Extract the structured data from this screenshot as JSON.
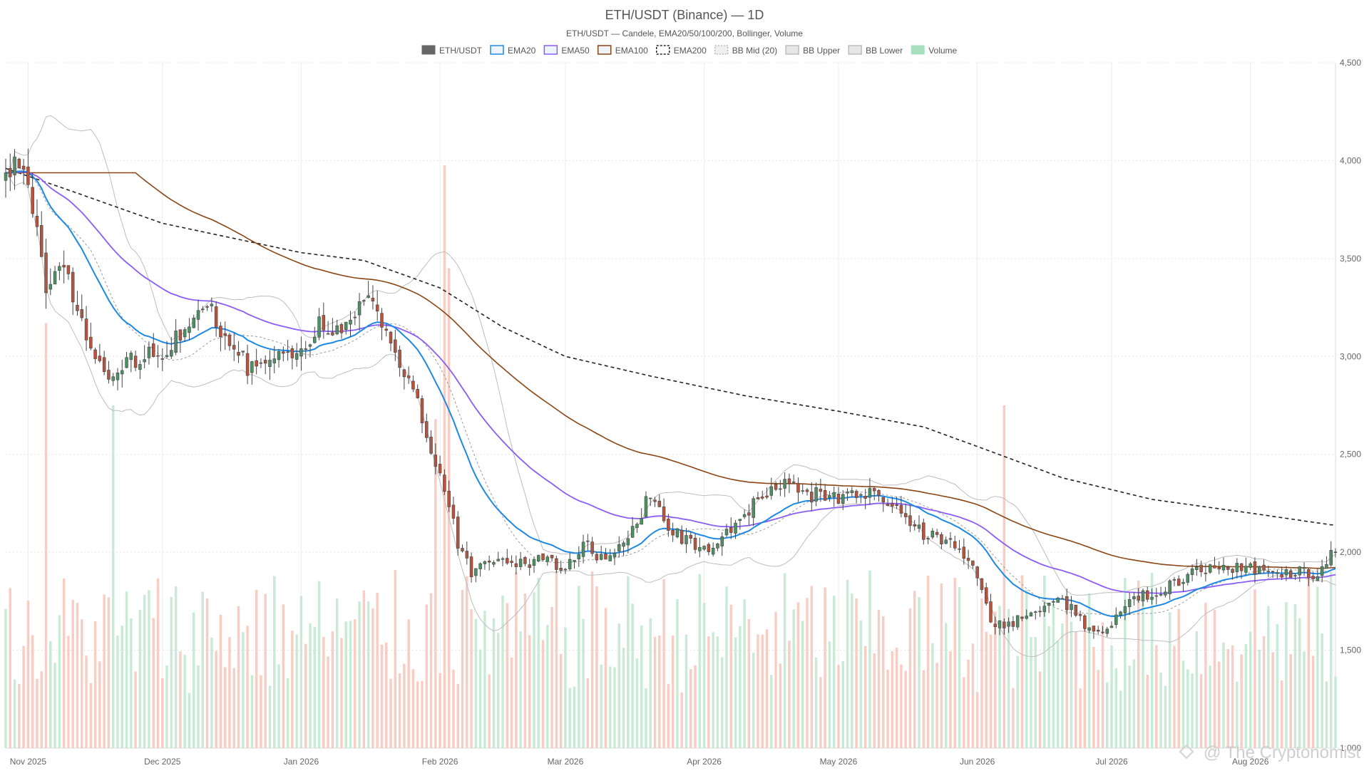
{
  "chart_data": {
    "type": "candlestick",
    "title": "ETH/USDT (Binance) — 1D",
    "subtitle": "ETH/USDT — Candele, EMA20/50/100/200, Bollinger, Volume",
    "legend": [
      {
        "label": "ETH/USDT",
        "color": "#666666",
        "style": "solid-fill"
      },
      {
        "label": "EMA20",
        "color": "#1e88e5",
        "style": "line"
      },
      {
        "label": "EMA50",
        "color": "#8b5cf6",
        "style": "line"
      },
      {
        "label": "EMA100",
        "color": "#8b4513",
        "style": "line"
      },
      {
        "label": "EMA200",
        "color": "#222222",
        "style": "dashed"
      },
      {
        "label": "BB Mid (20)",
        "color": "#999999",
        "style": "dotted"
      },
      {
        "label": "BB Upper",
        "color": "#bdbdbd",
        "style": "line"
      },
      {
        "label": "BB Lower",
        "color": "#bdbdbd",
        "style": "line"
      },
      {
        "label": "Volume",
        "color": "#a8e0bf",
        "style": "solid-fill"
      }
    ],
    "legend_position": "top-center",
    "x_axis": {
      "type": "date",
      "range": [
        "2025-10-27",
        "2026-08-20"
      ],
      "ticks": [
        {
          "date": "2025-11-01",
          "label": "Nov 2025"
        },
        {
          "date": "2025-12-01",
          "label": "Dec 2025"
        },
        {
          "date": "2026-01-01",
          "label": "Jan 2026"
        },
        {
          "date": "2026-02-01",
          "label": "Feb 2026"
        },
        {
          "date": "2026-03-01",
          "label": "Mar 2026"
        },
        {
          "date": "2026-04-01",
          "label": "Apr 2026"
        },
        {
          "date": "2026-05-01",
          "label": "May 2026"
        },
        {
          "date": "2026-06-01",
          "label": "Jun 2026"
        },
        {
          "date": "2026-07-01",
          "label": "Jul 2026"
        },
        {
          "date": "2026-08-01",
          "label": "Aug 2026"
        }
      ]
    },
    "y_axis": {
      "position": "right",
      "range": [
        1000,
        4500
      ],
      "ticks": [
        1000,
        1500,
        2000,
        2500,
        3000,
        3500,
        4000,
        4500
      ],
      "tick_labels": [
        "1,000",
        "1,500",
        "2,000",
        "2,500",
        "3,000",
        "3,500",
        "4,000",
        "4,500"
      ]
    },
    "grid": true,
    "colors": {
      "up": "#4e8f63",
      "down": "#b5543f",
      "up_volume": "#bfe6cf",
      "down_volume": "#f7c4ba"
    },
    "anchors": {
      "close": [
        [
          "2025-10-27",
          3950
        ],
        [
          "2025-10-31",
          3980
        ],
        [
          "2025-11-03",
          3650
        ],
        [
          "2025-11-05",
          3300
        ],
        [
          "2025-11-09",
          3500
        ],
        [
          "2025-11-12",
          3250
        ],
        [
          "2025-11-15",
          3050
        ],
        [
          "2025-11-20",
          2850
        ],
        [
          "2025-11-23",
          2980
        ],
        [
          "2025-11-28",
          3000
        ],
        [
          "2025-12-02",
          3050
        ],
        [
          "2025-12-06",
          3150
        ],
        [
          "2025-12-10",
          3300
        ],
        [
          "2025-12-15",
          3100
        ],
        [
          "2025-12-20",
          2950
        ],
        [
          "2025-12-25",
          2980
        ],
        [
          "2026-01-01",
          3000
        ],
        [
          "2026-01-05",
          3150
        ],
        [
          "2026-01-10",
          3150
        ],
        [
          "2026-01-15",
          3300
        ],
        [
          "2026-01-19",
          3200
        ],
        [
          "2026-01-22",
          3000
        ],
        [
          "2026-01-26",
          2850
        ],
        [
          "2026-01-29",
          2600
        ],
        [
          "2026-02-01",
          2400
        ],
        [
          "2026-02-05",
          2050
        ],
        [
          "2026-02-08",
          1900
        ],
        [
          "2026-02-12",
          1950
        ],
        [
          "2026-02-18",
          1950
        ],
        [
          "2026-02-24",
          1950
        ],
        [
          "2026-03-01",
          1920
        ],
        [
          "2026-03-05",
          2050
        ],
        [
          "2026-03-10",
          1950
        ],
        [
          "2026-03-15",
          2050
        ],
        [
          "2026-03-20",
          2300
        ],
        [
          "2026-03-25",
          2100
        ],
        [
          "2026-04-01",
          2000
        ],
        [
          "2026-04-07",
          2100
        ],
        [
          "2026-04-12",
          2250
        ],
        [
          "2026-04-18",
          2350
        ],
        [
          "2026-04-24",
          2300
        ],
        [
          "2026-05-01",
          2270
        ],
        [
          "2026-05-08",
          2320
        ],
        [
          "2026-05-14",
          2200
        ],
        [
          "2026-05-20",
          2100
        ],
        [
          "2026-05-27",
          2050
        ],
        [
          "2026-06-01",
          1900
        ],
        [
          "2026-06-04",
          1650
        ],
        [
          "2026-06-07",
          1620
        ],
        [
          "2026-06-13",
          1700
        ],
        [
          "2026-06-20",
          1760
        ],
        [
          "2026-06-26",
          1600
        ],
        [
          "2026-07-01",
          1620
        ],
        [
          "2026-07-06",
          1780
        ],
        [
          "2026-07-12",
          1800
        ],
        [
          "2026-07-18",
          1880
        ],
        [
          "2026-07-26",
          1930
        ],
        [
          "2026-08-02",
          1920
        ],
        [
          "2026-08-10",
          1900
        ],
        [
          "2026-08-16",
          1890
        ],
        [
          "2026-08-19",
          2000
        ]
      ],
      "ema200": [
        [
          "2025-10-27",
          3960
        ],
        [
          "2025-11-10",
          3850
        ],
        [
          "2025-12-01",
          3680
        ],
        [
          "2026-01-01",
          3530
        ],
        [
          "2026-01-15",
          3490
        ],
        [
          "2026-02-01",
          3350
        ],
        [
          "2026-02-15",
          3150
        ],
        [
          "2026-03-01",
          3000
        ],
        [
          "2026-03-20",
          2900
        ],
        [
          "2026-04-10",
          2800
        ],
        [
          "2026-05-01",
          2720
        ],
        [
          "2026-05-20",
          2640
        ],
        [
          "2026-06-01",
          2540
        ],
        [
          "2026-06-20",
          2380
        ],
        [
          "2026-07-10",
          2270
        ],
        [
          "2026-08-01",
          2200
        ],
        [
          "2026-08-19",
          2140
        ]
      ],
      "volume_note": "Volume bars overlaid in lower area; largest spikes near 2026-02-02 and 2026-06-07"
    }
  }
}
